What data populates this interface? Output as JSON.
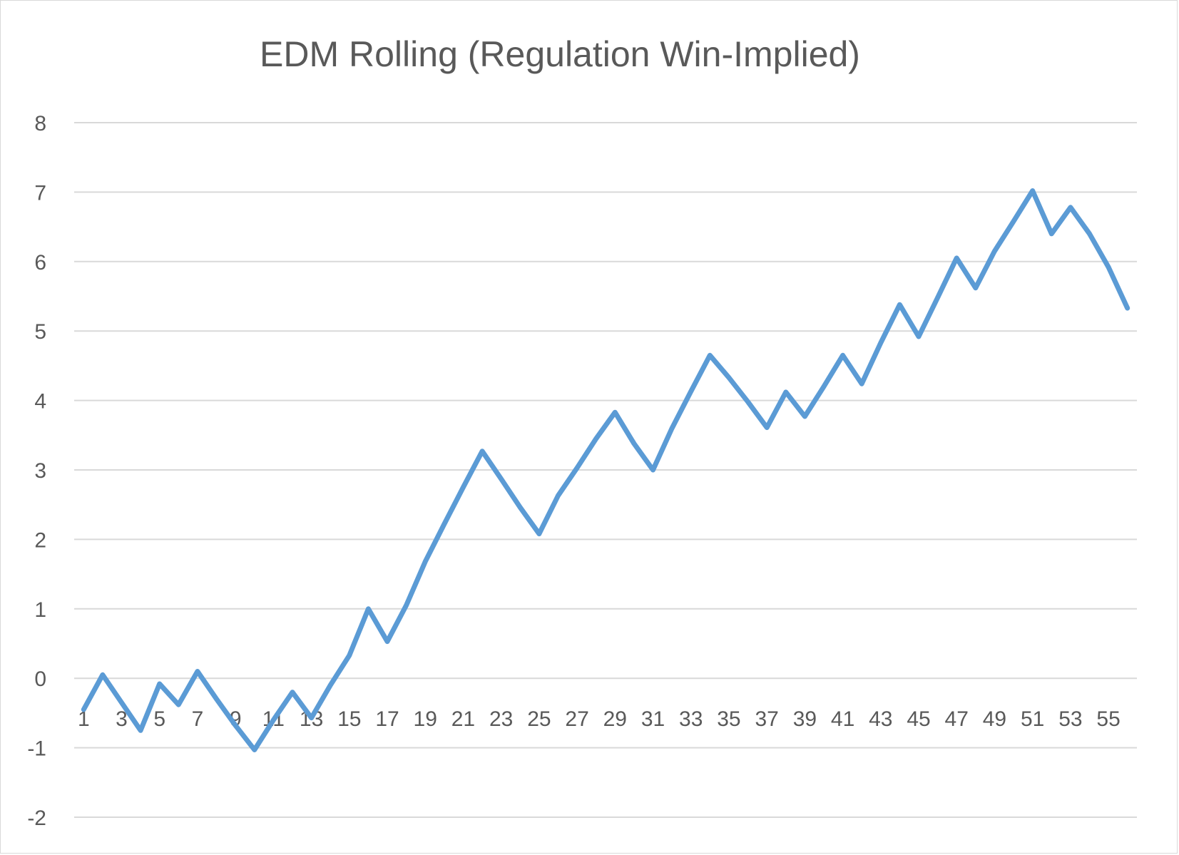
{
  "chart_data": {
    "type": "line",
    "title": "EDM Rolling (Regulation Win-Implied)",
    "xlabel": "",
    "ylabel": "",
    "ylim": [
      -2,
      8
    ],
    "y_ticks": [
      "-2",
      "-1",
      "0",
      "1",
      "2",
      "3",
      "4",
      "5",
      "6",
      "7",
      "8"
    ],
    "x_tick_labels": [
      "1",
      "3",
      "5",
      "7",
      "9",
      "11",
      "13",
      "15",
      "17",
      "19",
      "21",
      "23",
      "25",
      "27",
      "29",
      "31",
      "33",
      "35",
      "37",
      "39",
      "41",
      "43",
      "45",
      "47",
      "49",
      "51",
      "53",
      "55"
    ],
    "grid": true,
    "legend": "none",
    "x": [
      1,
      2,
      3,
      4,
      5,
      6,
      7,
      8,
      9,
      10,
      11,
      12,
      13,
      14,
      15,
      16,
      17,
      18,
      19,
      20,
      21,
      22,
      23,
      24,
      25,
      26,
      27,
      28,
      29,
      30,
      31,
      32,
      33,
      34,
      35,
      36,
      37,
      38,
      39,
      40,
      41,
      42,
      43,
      44,
      45,
      46,
      47,
      48,
      49,
      50,
      51,
      52,
      53,
      54,
      55,
      56
    ],
    "series": [
      {
        "color": "#5b9bd5",
        "values": [
          -0.45,
          0.05,
          -0.35,
          -0.75,
          -0.08,
          -0.38,
          0.1,
          -0.3,
          -0.68,
          -1.03,
          -0.6,
          -0.2,
          -0.57,
          -0.1,
          0.33,
          1.0,
          0.53,
          1.05,
          1.68,
          2.22,
          2.75,
          3.27,
          2.87,
          2.46,
          2.08,
          2.63,
          3.03,
          3.45,
          3.83,
          3.38,
          3.0,
          3.6,
          4.13,
          4.65,
          4.33,
          3.98,
          3.61,
          4.12,
          3.77,
          4.2,
          4.65,
          4.24,
          4.83,
          5.38,
          4.92,
          5.48,
          6.05,
          5.62,
          6.15,
          6.58,
          7.02,
          6.4,
          6.78,
          6.4,
          5.92,
          5.33
        ]
      }
    ]
  }
}
